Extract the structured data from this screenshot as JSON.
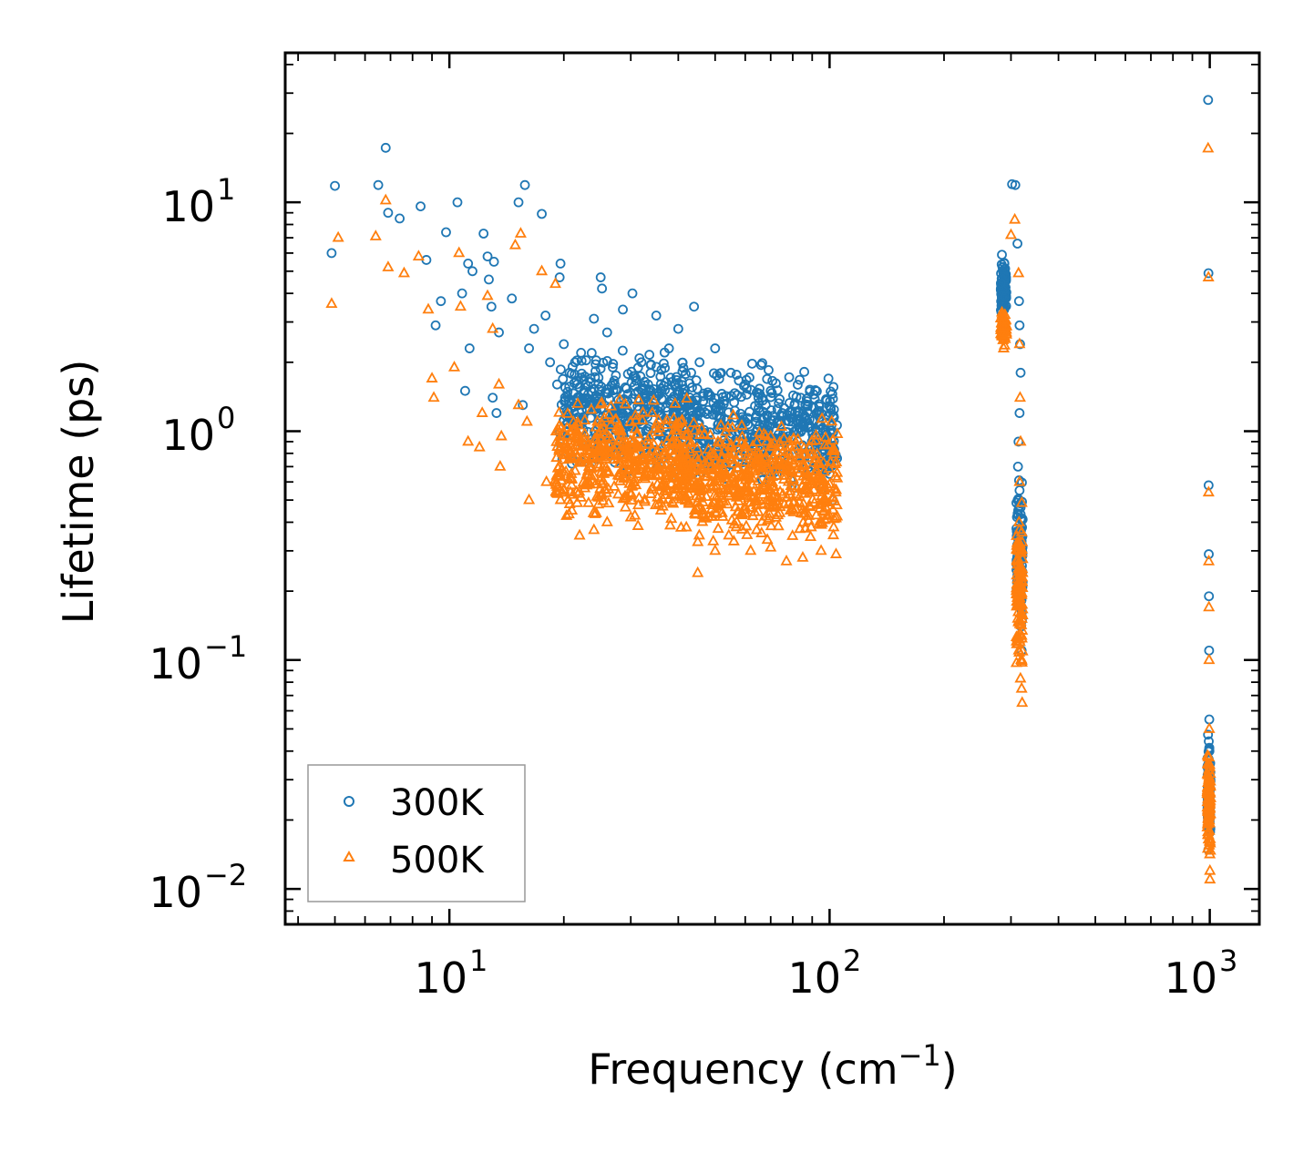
{
  "chart_data": {
    "type": "scatter",
    "title": "",
    "xlabel": "Frequency (cm",
    "xlabel_sup": "−1",
    "xlabel_end": ")",
    "ylabel": "Lifetime (ps)",
    "xscale": "log",
    "yscale": "log",
    "xlim": [
      3.7,
      1350
    ],
    "ylim": [
      0.007,
      45
    ],
    "x_ticks": [
      {
        "value": 10,
        "base": "10",
        "exp": "1"
      },
      {
        "value": 100,
        "base": "10",
        "exp": "2"
      },
      {
        "value": 1000,
        "base": "10",
        "exp": "3"
      }
    ],
    "y_ticks": [
      {
        "value": 10,
        "base": "10",
        "exp": "1"
      },
      {
        "value": 1,
        "base": "10",
        "exp": "0"
      },
      {
        "value": 0.1,
        "base": "10",
        "exp": "−1"
      },
      {
        "value": 0.01,
        "base": "10",
        "exp": "−2"
      }
    ],
    "legend": {
      "position": "bottom-left"
    },
    "series": [
      {
        "name": "300K",
        "marker": "circle",
        "color": "#1f77b4",
        "points": [
          [
            4.9,
            6.0
          ],
          [
            5.0,
            11.8
          ],
          [
            6.5,
            11.9
          ],
          [
            6.8,
            17.3
          ],
          [
            6.9,
            9.0
          ],
          [
            7.4,
            8.5
          ],
          [
            8.4,
            9.6
          ],
          [
            8.7,
            5.6
          ],
          [
            9.2,
            2.9
          ],
          [
            9.5,
            3.7
          ],
          [
            9.8,
            7.4
          ],
          [
            10.5,
            10.0
          ],
          [
            10.8,
            4.0
          ],
          [
            11.0,
            1.5
          ],
          [
            11.2,
            5.4
          ],
          [
            11.5,
            5.0
          ],
          [
            11.3,
            2.3
          ],
          [
            12.3,
            7.3
          ],
          [
            12.6,
            5.8
          ],
          [
            12.7,
            4.6
          ],
          [
            12.9,
            3.5
          ],
          [
            13.1,
            5.5
          ],
          [
            13.0,
            1.4
          ],
          [
            13.3,
            1.2
          ],
          [
            13.5,
            2.7
          ],
          [
            14.6,
            3.8
          ],
          [
            15.2,
            10.0
          ],
          [
            15.6,
            1.3
          ],
          [
            15.8,
            11.9
          ],
          [
            16.2,
            2.3
          ],
          [
            16.7,
            2.8
          ],
          [
            17.5,
            8.9
          ],
          [
            17.9,
            3.2
          ],
          [
            18.4,
            2.0
          ],
          [
            19.2,
            1.6
          ],
          [
            19.6,
            5.4
          ],
          [
            19.5,
            4.7
          ],
          [
            20.0,
            2.4
          ],
          [
            20.7,
            1.8
          ],
          [
            21.4,
            2.0
          ],
          [
            22.2,
            2.2
          ],
          [
            23.5,
            1.7
          ],
          [
            24.0,
            3.1
          ],
          [
            25.0,
            4.7
          ],
          [
            25.2,
            4.2
          ],
          [
            26.0,
            2.7
          ],
          [
            26.9,
            1.9
          ],
          [
            28.6,
            3.4
          ],
          [
            30.3,
            4.0
          ],
          [
            32.0,
            2.0
          ],
          [
            35.0,
            3.2
          ],
          [
            37.8,
            2.3
          ],
          [
            40.0,
            2.8
          ],
          [
            44.0,
            3.5
          ],
          [
            45.5,
            2.0
          ],
          [
            50.0,
            2.3
          ],
          [
            55.0,
            1.8
          ],
          [
            60.0,
            1.6
          ],
          [
            65.0,
            1.4
          ],
          [
            70.0,
            1.5
          ],
          [
            75.0,
            1.2
          ],
          [
            80.0,
            1.1
          ],
          [
            84.0,
            1.4
          ],
          [
            90.0,
            1.0
          ],
          [
            95.0,
            0.9
          ],
          [
            100.0,
            0.65
          ],
          [
            102.0,
            0.5
          ],
          [
            284.0,
            5.9
          ],
          [
            285.0,
            5.2
          ],
          [
            286.0,
            4.5
          ],
          [
            287.0,
            3.9
          ],
          [
            288.0,
            3.4
          ],
          [
            290.0,
            4.8
          ],
          [
            302.0,
            12.0
          ],
          [
            308.0,
            11.9
          ],
          [
            312.0,
            6.6
          ],
          [
            315.0,
            3.7
          ],
          [
            316.0,
            2.9
          ],
          [
            317.0,
            2.4
          ],
          [
            318.0,
            1.8
          ],
          [
            316.0,
            1.2
          ],
          [
            314.0,
            0.9
          ],
          [
            313.0,
            0.7
          ],
          [
            315.0,
            0.5
          ],
          [
            316.0,
            0.36
          ],
          [
            317.0,
            0.27
          ],
          [
            318.0,
            0.2
          ],
          [
            319.0,
            0.14
          ],
          [
            320.0,
            0.11
          ],
          [
            990.0,
            28.0
          ],
          [
            992.0,
            4.9
          ],
          [
            993.0,
            0.58
          ],
          [
            994.0,
            0.29
          ],
          [
            995.0,
            0.19
          ],
          [
            996.0,
            0.11
          ],
          [
            997.0,
            0.055
          ],
          [
            998.0,
            0.04
          ],
          [
            999.0,
            0.028
          ]
        ],
        "clusters": [
          {
            "x_range": [
              19.5,
              42
            ],
            "y_range": [
              0.6,
              2.6
            ],
            "count": 420
          },
          {
            "x_range": [
              40,
              105
            ],
            "y_range": [
              0.45,
              2.2
            ],
            "count": 520
          },
          {
            "x_range": [
              282,
              292
            ],
            "y_range": [
              3.0,
              5.9
            ],
            "count": 80
          },
          {
            "x_range": [
              310,
              322
            ],
            "y_range": [
              0.11,
              0.9
            ],
            "count": 110
          },
          {
            "x_range": [
              985,
              1005
            ],
            "y_range": [
              0.011,
              0.06
            ],
            "count": 70
          }
        ]
      },
      {
        "name": "500K",
        "marker": "triangle",
        "color": "#ff7f0e",
        "points": [
          [
            4.9,
            3.6
          ],
          [
            5.1,
            7.0
          ],
          [
            6.4,
            7.1
          ],
          [
            6.8,
            10.2
          ],
          [
            6.9,
            5.2
          ],
          [
            7.6,
            4.9
          ],
          [
            8.3,
            5.8
          ],
          [
            8.8,
            3.4
          ],
          [
            9.0,
            1.7
          ],
          [
            9.1,
            1.4
          ],
          [
            10.3,
            1.9
          ],
          [
            10.6,
            6.0
          ],
          [
            10.7,
            3.5
          ],
          [
            11.2,
            0.9
          ],
          [
            12.0,
            0.85
          ],
          [
            12.2,
            1.2
          ],
          [
            12.6,
            3.9
          ],
          [
            13.0,
            2.8
          ],
          [
            13.5,
            1.6
          ],
          [
            13.6,
            0.7
          ],
          [
            13.7,
            0.95
          ],
          [
            14.9,
            6.5
          ],
          [
            15.2,
            1.3
          ],
          [
            15.4,
            7.3
          ],
          [
            16.0,
            1.1
          ],
          [
            16.2,
            0.5
          ],
          [
            17.5,
            5.0
          ],
          [
            18.0,
            0.6
          ],
          [
            19.0,
            4.4
          ],
          [
            20.0,
            0.55
          ],
          [
            21.0,
            0.45
          ],
          [
            22.0,
            0.35
          ],
          [
            24.0,
            0.37
          ],
          [
            26.0,
            0.4
          ],
          [
            30.0,
            0.42
          ],
          [
            36.0,
            0.45
          ],
          [
            42.0,
            0.38
          ],
          [
            45.0,
            0.24
          ],
          [
            50.0,
            0.3
          ],
          [
            56.0,
            0.33
          ],
          [
            62.0,
            0.3
          ],
          [
            70.0,
            0.31
          ],
          [
            77.0,
            0.27
          ],
          [
            85.0,
            0.28
          ],
          [
            95.0,
            0.3
          ],
          [
            104.0,
            0.29
          ],
          [
            60.0,
            0.85
          ],
          [
            70.0,
            0.95
          ],
          [
            80.0,
            0.8
          ],
          [
            90.0,
            0.6
          ],
          [
            284.0,
            3.3
          ],
          [
            285.0,
            2.8
          ],
          [
            286.0,
            2.5
          ],
          [
            287.0,
            2.3
          ],
          [
            300.0,
            7.2
          ],
          [
            307.0,
            8.4
          ],
          [
            314.0,
            4.9
          ],
          [
            316.0,
            2.4
          ],
          [
            317.0,
            1.4
          ],
          [
            318.0,
            0.9
          ],
          [
            316.0,
            0.6
          ],
          [
            315.0,
            0.4
          ],
          [
            317.0,
            0.25
          ],
          [
            318.0,
            0.16
          ],
          [
            319.0,
            0.1
          ],
          [
            320.0,
            0.075
          ],
          [
            321.0,
            0.065
          ],
          [
            990.0,
            17.2
          ],
          [
            992.0,
            4.7
          ],
          [
            993.0,
            0.54
          ],
          [
            994.0,
            0.27
          ],
          [
            995.0,
            0.17
          ],
          [
            996.0,
            0.1
          ],
          [
            997.0,
            0.05
          ],
          [
            998.0,
            0.035
          ],
          [
            999.0,
            0.024
          ],
          [
            1000.0,
            0.016
          ],
          [
            1001.0,
            0.012
          ],
          [
            1001.0,
            0.011
          ]
        ],
        "clusters": [
          {
            "x_range": [
              19,
              43
            ],
            "y_range": [
              0.35,
              1.6
            ],
            "count": 470
          },
          {
            "x_range": [
              40,
              105
            ],
            "y_range": [
              0.28,
              1.3
            ],
            "count": 560
          },
          {
            "x_range": [
              282,
              292
            ],
            "y_range": [
              2.3,
              3.5
            ],
            "count": 60
          },
          {
            "x_range": [
              310,
              322
            ],
            "y_range": [
              0.065,
              0.6
            ],
            "count": 120
          },
          {
            "x_range": [
              985,
              1005
            ],
            "y_range": [
              0.011,
              0.05
            ],
            "count": 90
          }
        ]
      }
    ]
  }
}
